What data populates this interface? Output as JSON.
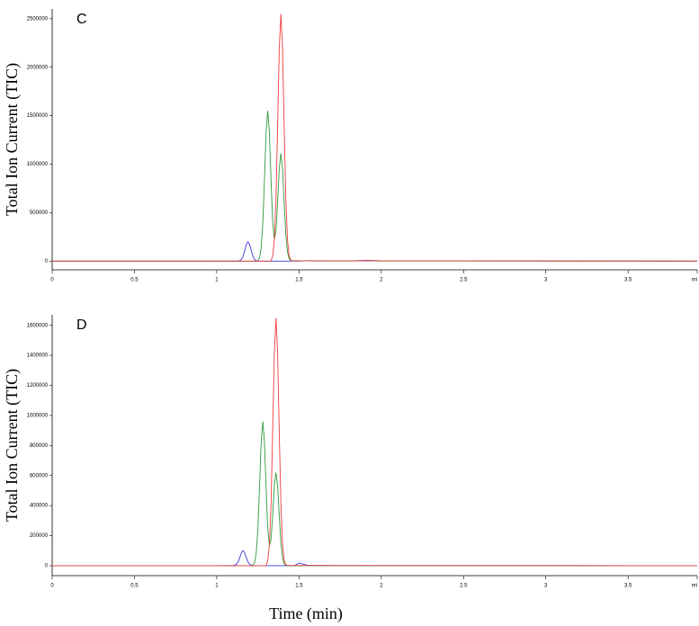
{
  "chart_data": [
    {
      "type": "line",
      "annotation": "C",
      "ylabel": "Total Ion Current (TIC)",
      "x": [
        0,
        0.5,
        1.0,
        1.1,
        1.12,
        1.13,
        1.14,
        1.15,
        1.16,
        1.17,
        1.18,
        1.19,
        1.2,
        1.21,
        1.22,
        1.23,
        1.24,
        1.25,
        1.26,
        1.27,
        1.28,
        1.29,
        1.3,
        1.31,
        1.32,
        1.33,
        1.34,
        1.35,
        1.36,
        1.37,
        1.38,
        1.39,
        1.4,
        1.41,
        1.42,
        1.43,
        1.44,
        1.45,
        1.46,
        1.47,
        1.48,
        1.49,
        1.5,
        1.55,
        1.6,
        1.8,
        1.92,
        2.0,
        2.5,
        3.0,
        3.5,
        3.92
      ],
      "series": [
        {
          "name": "blue",
          "color": "#3a3ad6",
          "values": [
            0,
            0,
            0,
            0,
            0,
            0,
            4200,
            17000,
            49800,
            108000,
            171400,
            200000,
            171400,
            108000,
            49800,
            17000,
            4200,
            0,
            0,
            0,
            0,
            0,
            0,
            0,
            0,
            0,
            0,
            0,
            0,
            0,
            0,
            0,
            0,
            0,
            0,
            0,
            0,
            0,
            0,
            0,
            0,
            0,
            0,
            4000,
            3000,
            2000,
            8000,
            3000,
            2000,
            1000,
            1000,
            0
          ]
        },
        {
          "name": "green",
          "color": "#2e9a3a",
          "values": [
            0,
            0,
            0,
            0,
            0,
            0,
            0,
            0,
            0,
            0,
            0,
            0,
            0,
            0,
            0,
            0,
            0,
            6200,
            32600,
            132000,
            386000,
            837000,
            1328000,
            1550000,
            1328000,
            837000,
            409000,
            226000,
            309000,
            606000,
            951000,
            1110000,
            951000,
            599000,
            276000,
            94000,
            23000,
            4400,
            2000,
            2000,
            2000,
            2000,
            2000,
            2000,
            1000,
            1000,
            3000,
            1000,
            1000,
            0,
            0,
            0
          ]
        },
        {
          "name": "red",
          "color": "#f03c3c",
          "values": [
            0,
            0,
            0,
            0,
            0,
            0,
            0,
            0,
            0,
            0,
            0,
            0,
            0,
            0,
            0,
            0,
            0,
            0,
            0,
            0,
            0,
            0,
            0,
            0,
            0,
            0,
            53600,
            217000,
            635000,
            1377000,
            2185000,
            2550000,
            2185000,
            1377000,
            635000,
            217000,
            53600,
            10200,
            3000,
            3000,
            3000,
            3000,
            3000,
            3000,
            2000,
            2000,
            4000,
            3000,
            2000,
            2000,
            1000,
            0
          ]
        }
      ],
      "xlim": [
        0,
        3.92
      ],
      "ylim": [
        -90000,
        2600000
      ],
      "xticks": [
        0,
        0.5,
        1,
        1.5,
        2,
        2.5,
        3,
        3.5,
        {
          "value": 3.92,
          "label": "mi"
        }
      ],
      "yticks": [
        0,
        500000,
        1000000,
        1500000,
        2000000,
        2500000
      ]
    },
    {
      "type": "line",
      "annotation": "D",
      "ylabel": "Total Ion Current (TIC)",
      "xlabel": "Time (min)",
      "x": [
        0,
        0.5,
        1.0,
        1.1,
        1.12,
        1.13,
        1.14,
        1.15,
        1.16,
        1.17,
        1.18,
        1.19,
        1.2,
        1.21,
        1.22,
        1.23,
        1.24,
        1.25,
        1.26,
        1.27,
        1.28,
        1.29,
        1.3,
        1.31,
        1.32,
        1.33,
        1.34,
        1.35,
        1.36,
        1.37,
        1.38,
        1.39,
        1.4,
        1.41,
        1.42,
        1.43,
        1.44,
        1.45,
        1.46,
        1.47,
        1.48,
        1.49,
        1.5,
        1.55,
        1.6,
        1.8,
        1.92,
        2.0,
        2.5,
        3.0,
        3.5,
        3.92
      ],
      "series": [
        {
          "name": "blue",
          "color": "#3a3ad6",
          "values": [
            0,
            0,
            0,
            1000,
            8500,
            24900,
            54000,
            85700,
            100000,
            85700,
            54000,
            24900,
            8500,
            2100,
            0,
            0,
            0,
            0,
            0,
            0,
            0,
            0,
            0,
            0,
            0,
            0,
            0,
            0,
            0,
            0,
            0,
            0,
            0,
            0,
            0,
            0,
            0,
            0,
            0,
            0,
            5000,
            12000,
            18000,
            3000,
            2000,
            1000,
            1000,
            1000,
            1000,
            1000,
            0,
            0
          ]
        },
        {
          "name": "green",
          "color": "#2e9a3a",
          "values": [
            0,
            0,
            0,
            0,
            0,
            0,
            0,
            0,
            0,
            0,
            0,
            0,
            0,
            0,
            3800,
            20000,
            82000,
            239000,
            518000,
            823000,
            960000,
            823000,
            518000,
            252000,
            134000,
            175000,
            339000,
            531000,
            620000,
            531000,
            335000,
            154000,
            53000,
            13000,
            2500,
            0,
            0,
            0,
            0,
            0,
            0,
            0,
            0,
            0,
            0,
            0,
            0,
            0,
            0,
            0,
            0,
            0
          ]
        },
        {
          "name": "red",
          "color": "#f03c3c",
          "values": [
            0,
            0,
            0,
            0,
            0,
            0,
            0,
            0,
            0,
            0,
            0,
            0,
            0,
            0,
            0,
            0,
            0,
            0,
            0,
            0,
            0,
            0,
            0,
            34700,
            140000,
            411000,
            891000,
            1414000,
            1650000,
            1414000,
            891000,
            411000,
            140000,
            34700,
            6600,
            2000,
            2000,
            2000,
            2000,
            2000,
            2000,
            2000,
            2000,
            2000,
            2000,
            1000,
            2000,
            1000,
            1000,
            1000,
            0,
            0
          ]
        }
      ],
      "xlim": [
        0,
        3.92
      ],
      "ylim": [
        -66000,
        1670000
      ],
      "xticks": [
        0,
        0.5,
        1,
        1.5,
        2,
        2.5,
        3,
        3.5,
        {
          "value": 3.92,
          "label": "mi"
        }
      ],
      "yticks": [
        0,
        200000,
        400000,
        600000,
        800000,
        1000000,
        1200000,
        1400000,
        1600000
      ]
    }
  ]
}
